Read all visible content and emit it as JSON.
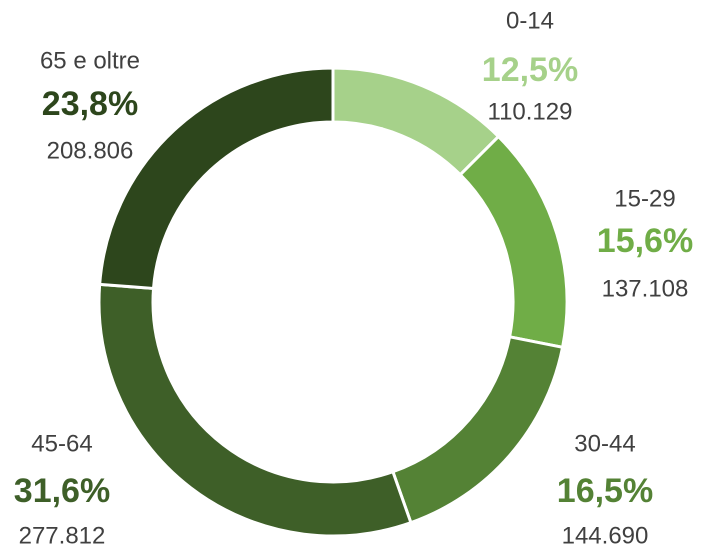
{
  "chart_data": {
    "type": "donut",
    "categories": [
      "0-14",
      "15-29",
      "30-44",
      "45-64",
      "65 e oltre"
    ],
    "values": [
      12.5,
      15.6,
      16.5,
      31.6,
      23.8
    ],
    "value_labels": [
      "12,5%",
      "15,6%",
      "16,5%",
      "31,6%",
      "23,8%"
    ],
    "counts": [
      110129,
      137108,
      144690,
      277812,
      208806
    ],
    "count_labels": [
      "110.129",
      "137.108",
      "144.690",
      "277.812",
      "208.806"
    ],
    "colors": [
      "#a6d18a",
      "#70ad47",
      "#548235",
      "#3e5f28",
      "#2d461c"
    ]
  }
}
